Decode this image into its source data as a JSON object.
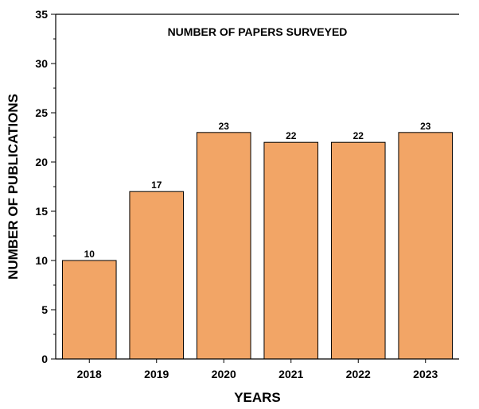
{
  "chart_data": {
    "type": "bar",
    "title": "NUMBER OF PAPERS SURVEYED",
    "xlabel": "YEARS",
    "ylabel": "NUMBER OF PUBLICATIONS",
    "categories": [
      "2018",
      "2019",
      "2020",
      "2021",
      "2022",
      "2023"
    ],
    "values": [
      10,
      17,
      23,
      22,
      22,
      23
    ],
    "data_labels": [
      "10",
      "17",
      "23",
      "22",
      "22",
      "23"
    ],
    "ylim": [
      0,
      35
    ],
    "yticks": [
      0,
      5,
      10,
      15,
      20,
      25,
      30,
      35
    ],
    "ytick_labels": [
      "0",
      "5",
      "10",
      "15",
      "20",
      "25",
      "30",
      "35"
    ],
    "grid": false,
    "legend": "none",
    "bar_color": "#F2A566",
    "bar_edge_color": "#000000"
  }
}
